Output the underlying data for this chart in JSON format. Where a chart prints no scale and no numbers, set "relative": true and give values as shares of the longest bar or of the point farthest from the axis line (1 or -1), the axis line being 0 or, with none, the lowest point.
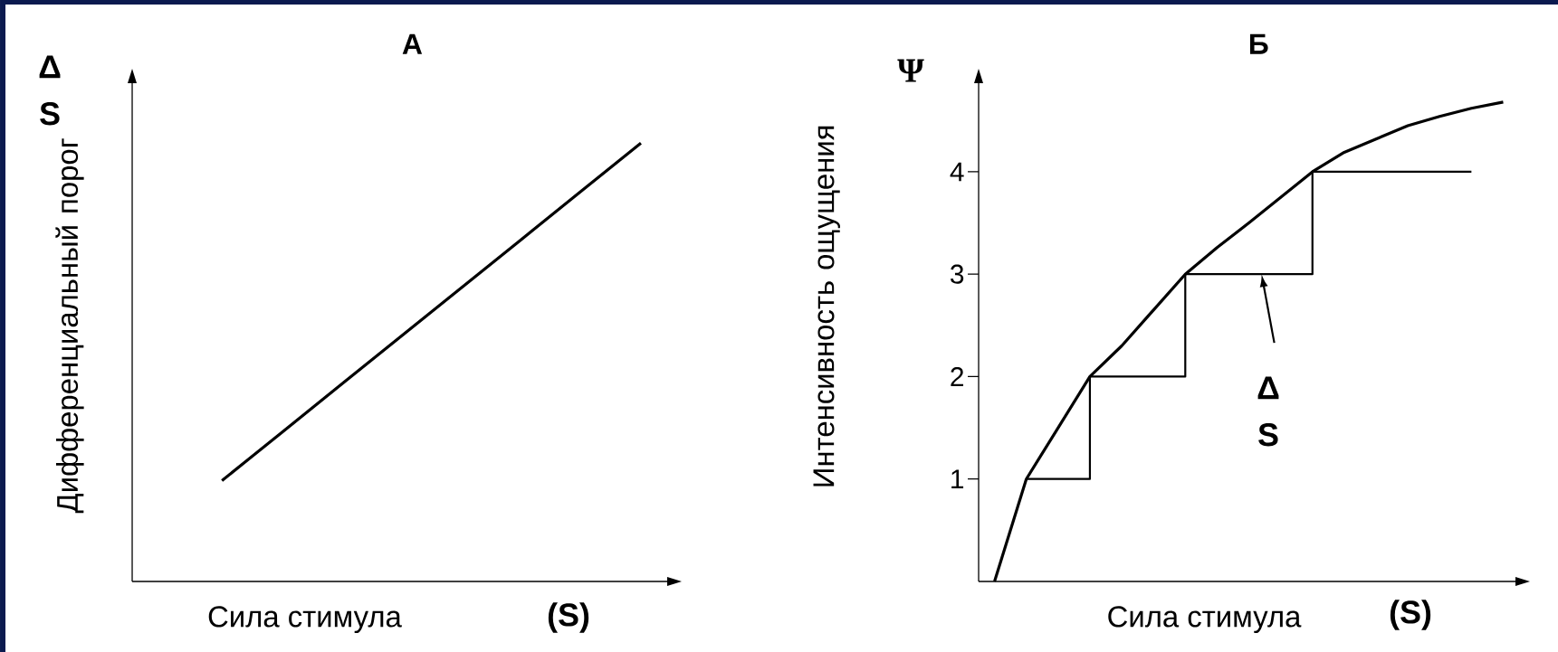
{
  "chart_data": [
    {
      "type": "line",
      "title": "А",
      "xlabel": "Сила стимула",
      "ylabel": "Дифференциальный порог",
      "annotations": [
        "Δ S",
        "(S)"
      ],
      "relative": true,
      "categories": [
        null,
        null,
        null,
        null,
        null,
        null,
        null,
        null,
        null
      ],
      "values": [
        null,
        0.23,
        0.34,
        0.45,
        0.56,
        0.67,
        0.78,
        0.89,
        1.0
      ],
      "color": "#000000"
    },
    {
      "type": "line",
      "title": "Б",
      "xlabel": "Сила стимула",
      "ylabel": "Интенсивность ощущения",
      "annotations": [
        "Ψ",
        "(S)",
        "Δ S"
      ],
      "categories": [
        null,
        null,
        null,
        null,
        null,
        null,
        null,
        null,
        null,
        null,
        null,
        null,
        null,
        null,
        null,
        null,
        null
      ],
      "ylim": [
        0,
        4.9
      ],
      "yticks": [
        1,
        2,
        3,
        4
      ],
      "series": [
        {
          "type": "line",
          "color": "#000000",
          "values": [
            0,
            1,
            1.5,
            2,
            2.3,
            2.65,
            3,
            3.26,
            3.5,
            3.75,
            4,
            4.19,
            4.32,
            4.45,
            4.54,
            4.62,
            4.68
          ]
        },
        {
          "type": "step",
          "color": "#000000",
          "values": [
            null,
            1,
            1,
            2,
            2,
            2,
            3,
            3,
            3,
            3,
            4,
            4,
            4,
            4,
            4,
            4,
            null
          ]
        }
      ]
    }
  ]
}
